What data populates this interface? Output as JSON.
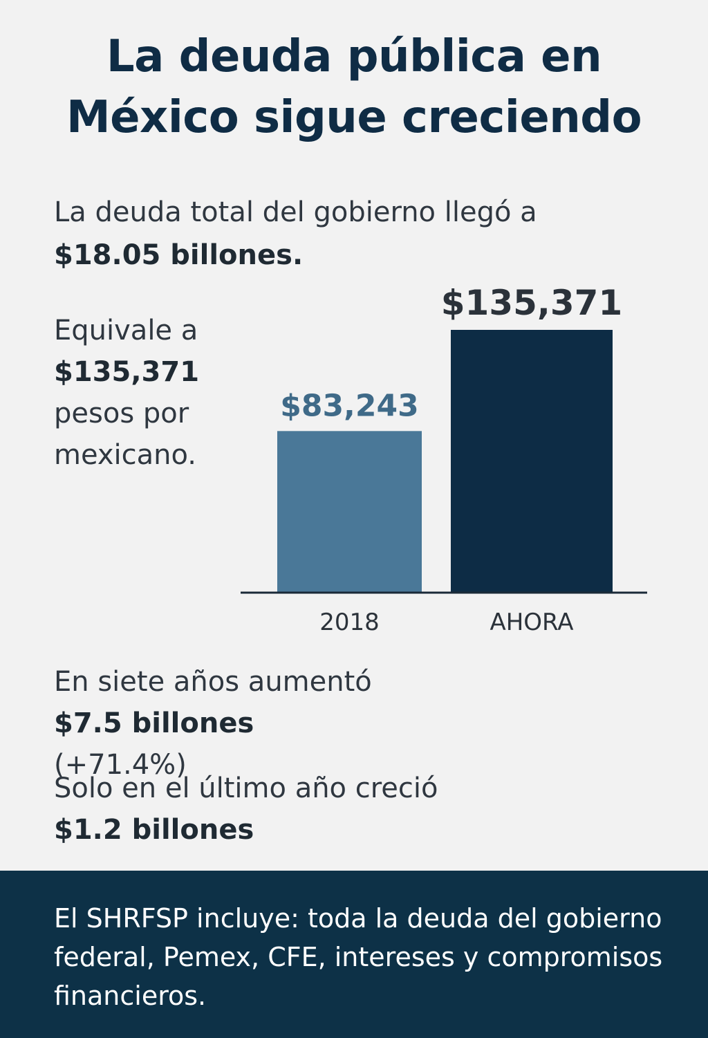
{
  "title": {
    "line1": "La deuda pública en",
    "line2": "México sigue creciendo"
  },
  "stat_total": {
    "text": "La deuda total del gobierno llegó a",
    "value": "$18.05 billones."
  },
  "stat_per_capita": {
    "line1": "Equivale a",
    "value": "$135,371",
    "line3": "pesos por",
    "line4": "mexicano."
  },
  "stat_growth": {
    "text": "En siete años aumentó ",
    "value": "$7.5 billones",
    "percent": "(+71.4%)"
  },
  "stat_last_year": {
    "text": "Solo en el último año creció",
    "value": "$1.2 billones"
  },
  "footer": {
    "text": "El SHRFSP incluye: toda la deuda del gobierno federal, Pemex, CFE, intereses y compromisos financieros."
  },
  "colors": {
    "bar_2018": "#4a7898",
    "bar_now": "#0d2c45",
    "label_2018": "#3f6a88",
    "label_now": "#2b323a",
    "axis": "#1a2a38"
  },
  "chart_data": {
    "type": "bar",
    "categories": [
      "2018",
      "AHORA"
    ],
    "values": [
      83243,
      135371
    ],
    "data_labels": [
      "$83,243",
      "$135,371"
    ],
    "title": "",
    "xlabel": "",
    "ylabel": "",
    "ylim": [
      0,
      135371
    ],
    "grid": false,
    "legend": "none"
  }
}
